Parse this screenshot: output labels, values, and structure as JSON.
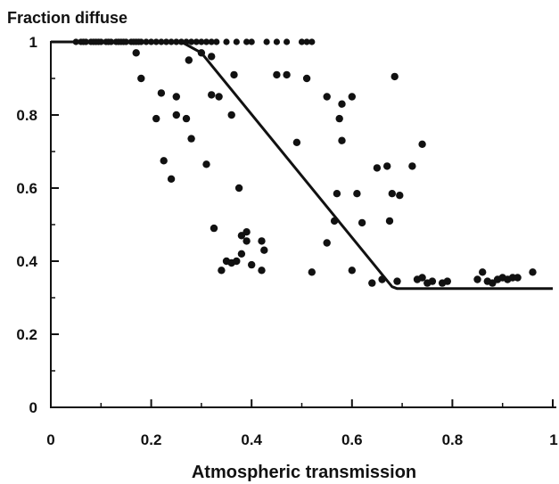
{
  "chart_data": {
    "type": "scatter",
    "title": "",
    "xlabel": "Atmospheric transmission",
    "ylabel": "Fraction diffuse",
    "xlim": [
      0,
      1
    ],
    "ylim": [
      0,
      1
    ],
    "x_ticks": [
      "0",
      "0.2",
      "0.4",
      "0.6",
      "0.8",
      "1"
    ],
    "y_ticks": [
      "0",
      "0.2",
      "0.4",
      "0.6",
      "0.8",
      "1"
    ],
    "grid": false,
    "legend": "none",
    "colors": {
      "points": "#111111",
      "line": "#111111",
      "axes": "#111111"
    },
    "fit_line": {
      "x": [
        0,
        0.26,
        0.3,
        0.68,
        0.69,
        1.0
      ],
      "y": [
        1.0,
        1.0,
        0.97,
        0.33,
        0.325,
        0.325
      ]
    },
    "points": [
      [
        0.05,
        1
      ],
      [
        0.06,
        1
      ],
      [
        0.065,
        1
      ],
      [
        0.07,
        1
      ],
      [
        0.08,
        1
      ],
      [
        0.085,
        1
      ],
      [
        0.09,
        1
      ],
      [
        0.095,
        1
      ],
      [
        0.1,
        1
      ],
      [
        0.11,
        1
      ],
      [
        0.115,
        1
      ],
      [
        0.12,
        1
      ],
      [
        0.13,
        1
      ],
      [
        0.135,
        1
      ],
      [
        0.14,
        1
      ],
      [
        0.145,
        1
      ],
      [
        0.15,
        1
      ],
      [
        0.16,
        1
      ],
      [
        0.165,
        1
      ],
      [
        0.17,
        1
      ],
      [
        0.175,
        1
      ],
      [
        0.18,
        1
      ],
      [
        0.19,
        1
      ],
      [
        0.2,
        1
      ],
      [
        0.21,
        1
      ],
      [
        0.22,
        1
      ],
      [
        0.23,
        1
      ],
      [
        0.24,
        1
      ],
      [
        0.25,
        1
      ],
      [
        0.26,
        1
      ],
      [
        0.27,
        1
      ],
      [
        0.28,
        1
      ],
      [
        0.29,
        1
      ],
      [
        0.3,
        1
      ],
      [
        0.31,
        1
      ],
      [
        0.32,
        1
      ],
      [
        0.33,
        1
      ],
      [
        0.35,
        1
      ],
      [
        0.37,
        1
      ],
      [
        0.39,
        1
      ],
      [
        0.4,
        1
      ],
      [
        0.43,
        1
      ],
      [
        0.45,
        1
      ],
      [
        0.47,
        1
      ],
      [
        0.5,
        1
      ],
      [
        0.51,
        1
      ],
      [
        0.52,
        1
      ],
      [
        0.17,
        0.97
      ],
      [
        0.18,
        0.9
      ],
      [
        0.21,
        0.79
      ],
      [
        0.22,
        0.86
      ],
      [
        0.225,
        0.675
      ],
      [
        0.24,
        0.625
      ],
      [
        0.25,
        0.85
      ],
      [
        0.25,
        0.8
      ],
      [
        0.27,
        0.79
      ],
      [
        0.275,
        0.95
      ],
      [
        0.28,
        0.735
      ],
      [
        0.3,
        0.97
      ],
      [
        0.31,
        0.665
      ],
      [
        0.32,
        0.96
      ],
      [
        0.32,
        0.855
      ],
      [
        0.325,
        0.49
      ],
      [
        0.335,
        0.85
      ],
      [
        0.34,
        0.375
      ],
      [
        0.35,
        0.4
      ],
      [
        0.36,
        0.8
      ],
      [
        0.36,
        0.395
      ],
      [
        0.365,
        0.91
      ],
      [
        0.37,
        0.4
      ],
      [
        0.375,
        0.6
      ],
      [
        0.38,
        0.42
      ],
      [
        0.38,
        0.47
      ],
      [
        0.39,
        0.48
      ],
      [
        0.39,
        0.455
      ],
      [
        0.4,
        0.39
      ],
      [
        0.42,
        0.375
      ],
      [
        0.42,
        0.455
      ],
      [
        0.425,
        0.43
      ],
      [
        0.45,
        0.91
      ],
      [
        0.47,
        0.91
      ],
      [
        0.49,
        0.725
      ],
      [
        0.51,
        0.9
      ],
      [
        0.52,
        0.37
      ],
      [
        0.55,
        0.85
      ],
      [
        0.55,
        0.45
      ],
      [
        0.565,
        0.51
      ],
      [
        0.57,
        0.585
      ],
      [
        0.575,
        0.79
      ],
      [
        0.58,
        0.73
      ],
      [
        0.58,
        0.83
      ],
      [
        0.6,
        0.85
      ],
      [
        0.6,
        0.375
      ],
      [
        0.61,
        0.585
      ],
      [
        0.62,
        0.505
      ],
      [
        0.64,
        0.34
      ],
      [
        0.65,
        0.655
      ],
      [
        0.66,
        0.35
      ],
      [
        0.67,
        0.66
      ],
      [
        0.675,
        0.51
      ],
      [
        0.68,
        0.585
      ],
      [
        0.685,
        0.905
      ],
      [
        0.69,
        0.345
      ],
      [
        0.695,
        0.58
      ],
      [
        0.72,
        0.66
      ],
      [
        0.73,
        0.35
      ],
      [
        0.74,
        0.72
      ],
      [
        0.74,
        0.355
      ],
      [
        0.75,
        0.34
      ],
      [
        0.76,
        0.345
      ],
      [
        0.78,
        0.34
      ],
      [
        0.79,
        0.345
      ],
      [
        0.85,
        0.35
      ],
      [
        0.86,
        0.37
      ],
      [
        0.87,
        0.345
      ],
      [
        0.88,
        0.34
      ],
      [
        0.89,
        0.35
      ],
      [
        0.9,
        0.355
      ],
      [
        0.91,
        0.35
      ],
      [
        0.92,
        0.355
      ],
      [
        0.93,
        0.355
      ],
      [
        0.96,
        0.37
      ]
    ]
  }
}
